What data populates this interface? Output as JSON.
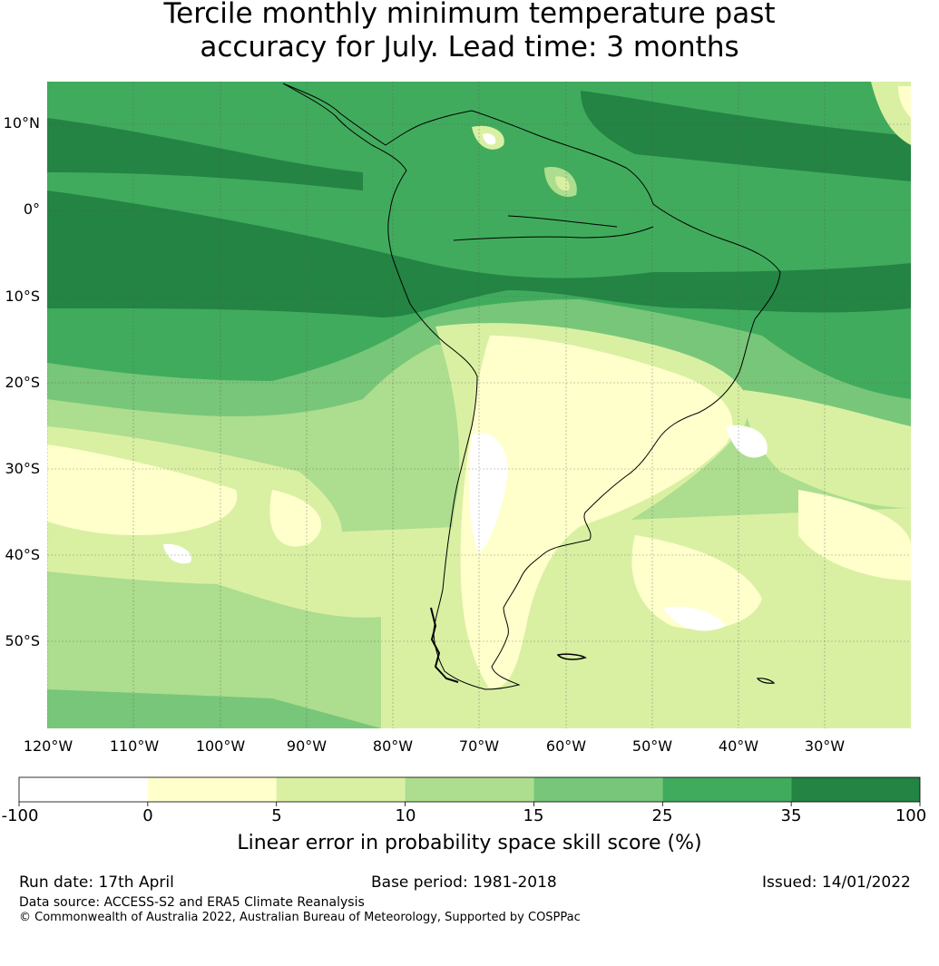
{
  "title": {
    "line1": "Tercile monthly minimum temperature past",
    "line2": "accuracy for July. Lead time: 3 months"
  },
  "map": {
    "lat_labels": [
      "10°N",
      "0°",
      "10°S",
      "20°S",
      "30°S",
      "40°S",
      "50°S"
    ],
    "lon_labels": [
      "120°W",
      "110°W",
      "100°W",
      "90°W",
      "80°W",
      "70°W",
      "60°W",
      "50°W",
      "40°W",
      "30°W"
    ],
    "colors": {
      "below_0": "#ffffff",
      "0_5": "#ffffcc",
      "5_10": "#d9f0a3",
      "10_15": "#addd8e",
      "15_25": "#78c679",
      "25_35": "#41ab5d",
      "35_100": "#238443"
    }
  },
  "colorbar": {
    "ticks": [
      "-100",
      "0",
      "5",
      "10",
      "15",
      "25",
      "35",
      "100"
    ],
    "label": "Linear error in probability space skill score (%)"
  },
  "footer": {
    "run_date": "Run date: 17th April",
    "base_period": "Base period: 1981-2018",
    "issued": "Issued: 14/01/2022",
    "data_source": "Data source: ACCESS-S2 and ERA5 Climate Reanalysis",
    "copyright": "© Commonwealth of Australia 2022, Australian Bureau of Meteorology, Supported by COSPPac"
  }
}
